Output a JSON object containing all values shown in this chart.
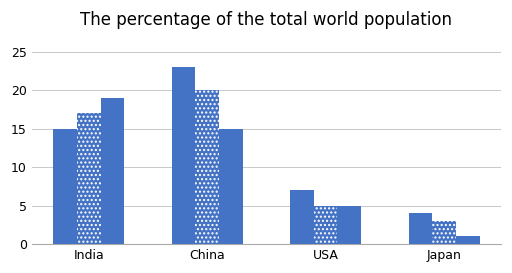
{
  "title": "The percentage of the total world population",
  "categories": [
    "India",
    "China",
    "USA",
    "Japan"
  ],
  "series": {
    "1950": [
      15,
      23,
      7,
      4
    ],
    "2002": [
      17,
      20,
      5,
      3
    ],
    "2050": [
      19,
      15,
      5,
      1
    ]
  },
  "bar_color_solid": "#4472c4",
  "bar_color_pattern": "#4472c4",
  "ylim": [
    0,
    27
  ],
  "yticks": [
    0,
    5,
    10,
    15,
    20,
    25
  ],
  "background_color": "#ffffff",
  "title_fontsize": 12,
  "bar_width": 0.2,
  "tick_fontsize": 9
}
